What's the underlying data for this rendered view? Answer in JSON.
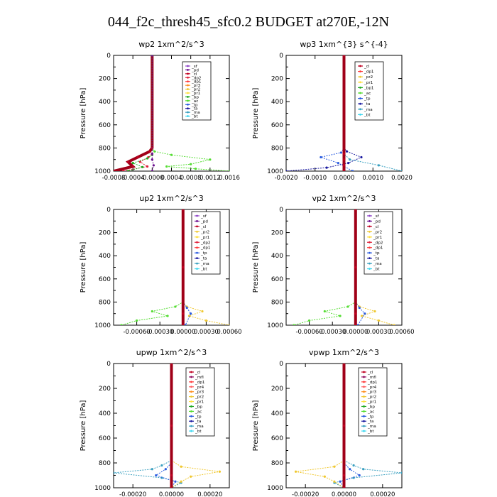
{
  "title": "044_f2c_thresh45_sfc0.2  BUDGET at270E,-12N",
  "colors": {
    "sf": "#8e44c8",
    "pd": "#6b0f8f",
    "cl": "#c00020",
    "dp2": "#e0203a",
    "dp1": "#ff3a3a",
    "pr3": "#ff9020",
    "pr2": "#f0c830",
    "pr1": "#ffe040",
    "bp": "#22aa22",
    "ac": "#55dd33",
    "tp": "#2a5ce0",
    "ta": "#1a1aa0",
    "ma": "#3aa0c0",
    "bt": "#40d8f0",
    "mfl": "#901060",
    "pr4": "#ff6060"
  },
  "chart_data": [
    {
      "type": "line",
      "title": "wp2   1xm^2/s^3",
      "ylabel": "Pressure [hPa]",
      "ylim": [
        1000,
        0
      ],
      "xlim": [
        -0.0008,
        0.0016
      ],
      "xticks": [
        "-0.0008",
        "-0.0004",
        "-0.0000",
        "0.0004",
        "0.0008",
        "0.0012",
        "0.0016"
      ],
      "yticks": [
        "0",
        "200",
        "400",
        "600",
        "800",
        "1000"
      ],
      "legend": [
        "_sf",
        "_pd",
        "_cl",
        "_dp2",
        "_dp1",
        "_pr3",
        "_pr2",
        "_pr1",
        "_bp",
        "_ac",
        "_tp",
        "_ta",
        "_ma",
        "_bt"
      ],
      "series": [
        {
          "key": "ac",
          "x": [
            0,
            0,
            5e-05,
            0.0004,
            0.0012,
            0.0008,
            0.0003,
            0.0009,
            0.0016
          ],
          "y": [
            0,
            800,
            830,
            860,
            900,
            940,
            960,
            980,
            1000
          ]
        },
        {
          "key": "cl",
          "x": [
            0,
            0,
            -5e-05,
            -0.0003,
            -0.0005,
            -0.0004,
            -0.0008
          ],
          "y": [
            0,
            800,
            830,
            880,
            920,
            960,
            1000
          ]
        },
        {
          "key": "dp2",
          "x": [
            0,
            0,
            -8e-05,
            -0.00025,
            -0.0001,
            -0.0006
          ],
          "y": [
            0,
            850,
            880,
            920,
            960,
            1000
          ]
        },
        {
          "key": "bp",
          "x": [
            0,
            0,
            -0.0001,
            -0.0004,
            -0.0002,
            -0.0005
          ],
          "y": [
            0,
            860,
            890,
            930,
            965,
            1000
          ]
        },
        {
          "key": "pd",
          "x": [
            0,
            0,
            0,
            3e-05,
            0
          ],
          "y": [
            0,
            850,
            900,
            950,
            1000
          ]
        }
      ]
    },
    {
      "type": "line",
      "title": "wp3   1xm^{3} s^{-4}",
      "ylabel": "Pressure [hPa]",
      "ylim": [
        1000,
        0
      ],
      "xlim": [
        -0.002,
        0.002
      ],
      "xticks": [
        "-0.0020",
        "-0.0010",
        "0.0000",
        "0.0010",
        "0.0020"
      ],
      "yticks": [
        "0",
        "200",
        "400",
        "600",
        "800",
        "1000"
      ],
      "legend": [
        "_cl",
        "_dp1",
        "_pr2",
        "_pr1",
        "_bp1",
        "_ac",
        "_tp",
        "_ta",
        "_ma",
        "_bt"
      ],
      "series": [
        {
          "key": "ta",
          "x": [
            0,
            0,
            0.0001,
            0.0006,
            0.00015,
            -0.0006,
            -0.002
          ],
          "y": [
            0,
            800,
            830,
            880,
            930,
            970,
            1000
          ]
        },
        {
          "key": "tp",
          "x": [
            0,
            0,
            -0.0001,
            -0.0008,
            -0.0002,
            0.0003
          ],
          "y": [
            0,
            800,
            840,
            880,
            930,
            1000
          ]
        },
        {
          "key": "ma",
          "x": [
            0,
            0,
            0.0002,
            0.0012,
            0.002
          ],
          "y": [
            0,
            850,
            900,
            950,
            1000
          ]
        },
        {
          "key": "cl",
          "x": [
            0,
            0,
            0,
            0,
            0
          ],
          "y": [
            0,
            850,
            900,
            950,
            1000
          ]
        }
      ]
    },
    {
      "type": "line",
      "title": "up2   1xm^2/s^3",
      "ylabel": "Pressure [hPa]",
      "ylim": [
        1000,
        0
      ],
      "xlim": [
        -0.0009,
        0.0006
      ],
      "xticks": [
        "-0.00060",
        "-0.00030",
        "0.00000",
        "0.00030",
        "0.00060"
      ],
      "yticks": [
        "0",
        "200",
        "400",
        "600",
        "800",
        "1000"
      ],
      "legend": [
        "_sf",
        "_pd",
        "_cl",
        "_pr2",
        "_pr1",
        "_dp2",
        "_dp1",
        "_tp",
        "_ta",
        "_ma",
        "_bt"
      ],
      "series": [
        {
          "key": "pr2",
          "x": [
            0,
            0,
            5e-05,
            0.00025,
            8e-05,
            0.0003,
            0.0006
          ],
          "y": [
            0,
            800,
            840,
            880,
            920,
            960,
            1000
          ]
        },
        {
          "key": "ac",
          "x": [
            0,
            0,
            -0.0001,
            -0.0004,
            -0.0002,
            -0.0006,
            -0.0008
          ],
          "y": [
            0,
            800,
            840,
            880,
            920,
            960,
            1000
          ]
        },
        {
          "key": "tp",
          "x": [
            0,
            0,
            5e-05,
            0.0001,
            3e-05
          ],
          "y": [
            0,
            800,
            850,
            900,
            1000
          ]
        },
        {
          "key": "cl",
          "x": [
            0,
            0,
            0,
            0
          ],
          "y": [
            0,
            500,
            900,
            1000
          ]
        }
      ]
    },
    {
      "type": "line",
      "title": "vp2   1xm^2/s^3",
      "ylabel": "Pressure [hPa]",
      "ylim": [
        1000,
        0
      ],
      "xlim": [
        -0.0009,
        0.0006
      ],
      "xticks": [
        "-0.00060",
        "-0.00030",
        "0.00000",
        "0.00030",
        "0.00060"
      ],
      "yticks": [
        "0",
        "200",
        "400",
        "600",
        "800",
        "1000"
      ],
      "legend": [
        "_sf",
        "_pd",
        "_cl",
        "_pr2",
        "_pr1",
        "_dp2",
        "_dp1",
        "_tp",
        "_ta",
        "_ma",
        "_bt"
      ],
      "series": [
        {
          "key": "pr2",
          "x": [
            0,
            0,
            5e-05,
            0.00025,
            8e-05,
            0.0003,
            0.0005
          ],
          "y": [
            0,
            800,
            840,
            880,
            920,
            960,
            1000
          ]
        },
        {
          "key": "ac",
          "x": [
            0,
            0,
            -0.0001,
            -0.0004,
            -0.0002,
            -0.0006,
            -0.0008
          ],
          "y": [
            0,
            800,
            840,
            880,
            920,
            960,
            1000
          ]
        },
        {
          "key": "tp",
          "x": [
            0,
            0,
            5e-05,
            0.00012,
            3e-05
          ],
          "y": [
            0,
            800,
            850,
            900,
            1000
          ]
        },
        {
          "key": "cl",
          "x": [
            0,
            0,
            0,
            0
          ],
          "y": [
            0,
            500,
            900,
            1000
          ]
        }
      ]
    },
    {
      "type": "line",
      "title": "upwp   1xm^2/s^3",
      "ylabel": "Pressure [hPa]",
      "ylim": [
        1000,
        0
      ],
      "xlim": [
        -0.0003,
        0.0003
      ],
      "xticks": [
        "-0.00020",
        "0.00000",
        "0.00020"
      ],
      "yticks": [
        "0",
        "200",
        "400",
        "600",
        "800",
        "1000"
      ],
      "legend": [
        "_cl",
        "_mfl",
        "_dp1",
        "_pr4",
        "_pr3",
        "_pr2",
        "_pr1",
        "_bp",
        "_ac",
        "_tp",
        "_ta",
        "_ma",
        "_bt"
      ],
      "series": [
        {
          "key": "ma",
          "x": [
            0,
            0,
            -5e-05,
            -0.0001,
            -0.0003,
            -5e-05,
            5e-05,
            0
          ],
          "y": [
            0,
            780,
            820,
            850,
            880,
            920,
            960,
            1000
          ]
        },
        {
          "key": "pr2",
          "x": [
            0,
            0,
            5e-05,
            0.00025,
            0.0001,
            5e-05,
            0
          ],
          "y": [
            0,
            780,
            830,
            870,
            910,
            950,
            1000
          ]
        },
        {
          "key": "tp",
          "x": [
            0,
            0,
            -3e-05,
            -8e-05,
            2e-05,
            0
          ],
          "y": [
            0,
            800,
            850,
            900,
            950,
            1000
          ]
        },
        {
          "key": "cl",
          "x": [
            0,
            0,
            0,
            0
          ],
          "y": [
            0,
            500,
            900,
            1000
          ]
        }
      ]
    },
    {
      "type": "line",
      "title": "vpwp   1xm^2/s^3",
      "ylabel": "Pressure [hPa]",
      "ylim": [
        1000,
        0
      ],
      "xlim": [
        -0.0003,
        0.0003
      ],
      "xticks": [
        "-0.00020",
        "0.00000",
        "0.00020"
      ],
      "yticks": [
        "0",
        "200",
        "400",
        "600",
        "800",
        "1000"
      ],
      "legend": [
        "_cl",
        "_mfl",
        "_dp1",
        "_pr4",
        "_pr3",
        "_pr2",
        "_pr1",
        "_bp",
        "_ac",
        "_tp",
        "_ta",
        "_ma",
        "_bt"
      ],
      "series": [
        {
          "key": "ma",
          "x": [
            0,
            0,
            5e-05,
            0.0001,
            0.0003,
            5e-05,
            -5e-05,
            0
          ],
          "y": [
            0,
            780,
            820,
            850,
            880,
            920,
            960,
            1000
          ]
        },
        {
          "key": "pr2",
          "x": [
            0,
            0,
            -5e-05,
            -0.00025,
            -0.0001,
            -5e-05,
            0
          ],
          "y": [
            0,
            780,
            830,
            870,
            910,
            950,
            1000
          ]
        },
        {
          "key": "tp",
          "x": [
            0,
            0,
            3e-05,
            8e-05,
            -2e-05,
            0
          ],
          "y": [
            0,
            800,
            850,
            900,
            950,
            1000
          ]
        },
        {
          "key": "cl",
          "x": [
            0,
            0,
            0,
            0
          ],
          "y": [
            0,
            500,
            900,
            1000
          ]
        }
      ]
    }
  ]
}
